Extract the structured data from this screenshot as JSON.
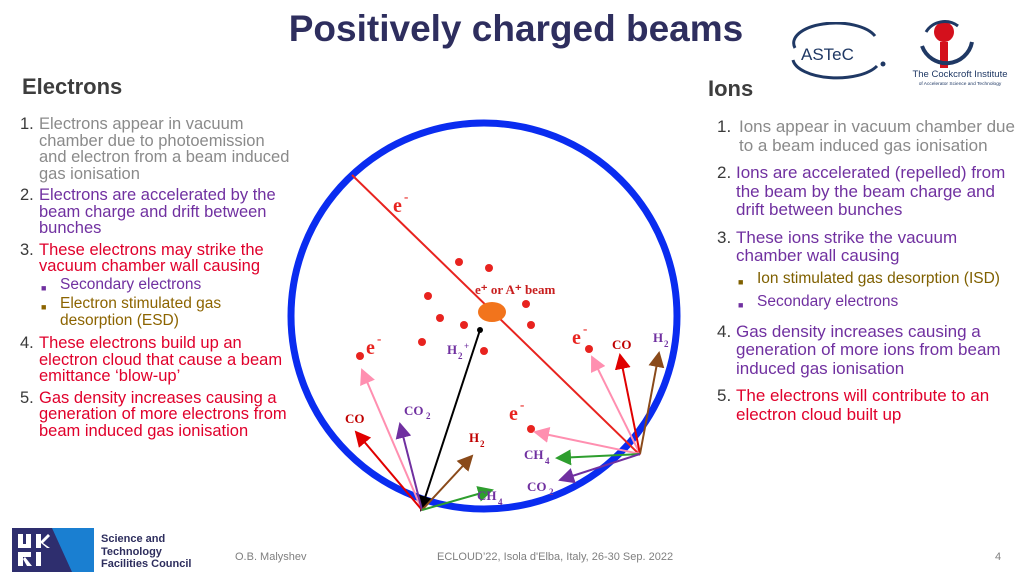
{
  "title": "Positively charged beams",
  "logos": {
    "astec": "ASTeC",
    "cockcroft_name": "The Cockcroft Institute",
    "cockcroft_sub": "of Accelerator Science and Technology",
    "stfc_line1": "Science and",
    "stfc_line2": "Technology",
    "stfc_line3": "Facilities Council"
  },
  "electrons": {
    "heading": "Electrons",
    "items": [
      {
        "num": "1.",
        "text": "Electrons appear in vacuum chamber due to photoemission and  electron from a beam induced gas ionisation"
      },
      {
        "num": "2.",
        "text": "Electrons are accelerated by the beam charge and drift between bunches"
      },
      {
        "num": "3.",
        "text": "These electrons may strike the vacuum chamber wall causing"
      },
      {
        "num": "4.",
        "text": "These electrons build up an electron cloud that cause a beam emittance ‘blow-up’"
      },
      {
        "num": "5.",
        "text": "Gas density increases causing a generation of more electrons from beam induced gas ionisation"
      }
    ],
    "sub_items": [
      "Secondary electrons",
      "Electron stimulated gas desorption (ESD)"
    ]
  },
  "ions": {
    "heading": "Ions",
    "items": [
      {
        "num": "1.",
        "text": "Ions appear in vacuum chamber due to a beam induced gas ionisation"
      },
      {
        "num": "2.",
        "text": "Ions are accelerated (repelled) from the beam by the beam charge and drift between bunches"
      },
      {
        "num": "3.",
        "text": "These ions strike the vacuum chamber wall causing"
      },
      {
        "num": "4.",
        "text": "Gas density increases causing a generation of more ions from beam induced gas ionisation"
      },
      {
        "num": "5.",
        "text": "The electrons will contribute to an electron cloud built up"
      }
    ],
    "sub_items": [
      "Ion stimulated gas desorption (ISD)",
      "Secondary electrons"
    ]
  },
  "diagram": {
    "beam_label": "e⁺ or A⁺ beam",
    "electron": "e",
    "minus": "-",
    "plus": "+",
    "h2_ion": "H",
    "species": {
      "co": "CO",
      "co2": "CO",
      "h2": "H",
      "ch4": "CH",
      "sub2": "2",
      "sub4": "4"
    }
  },
  "footer": {
    "author": "O.B. Malyshev",
    "conference": "ECLOUD’22, Isola d'Elba, Italy, 26-30 Sep. 2022",
    "page": "4"
  }
}
